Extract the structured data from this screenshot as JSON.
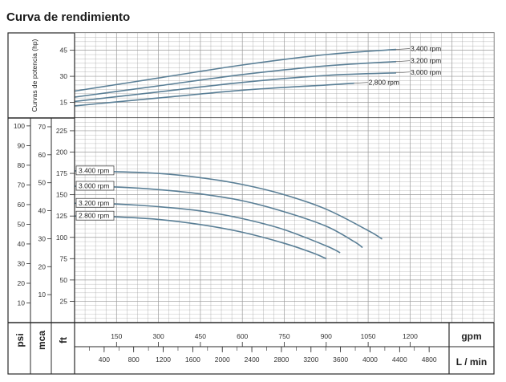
{
  "page_title": "Curva de rendimiento",
  "chart_data": {
    "type": "line",
    "title": "Curva de rendimiento",
    "colors": {
      "curve": "#5a7f96",
      "grid": "#9a9a9a",
      "frame": "#2a2a2a"
    },
    "power_chart": {
      "ylabel": "Curvas de potencia (hp)",
      "yticks": [
        15,
        30,
        45
      ],
      "ylim": [
        6,
        55
      ],
      "series": [
        {
          "label": "3,400 rpm",
          "x": [
            0,
            300,
            600,
            900,
            1150
          ],
          "y": [
            21.5,
            29,
            36.5,
            42.5,
            45.5
          ]
        },
        {
          "label": "3,200 rpm",
          "x": [
            0,
            300,
            600,
            900,
            1150
          ],
          "y": [
            18,
            24.5,
            31,
            36,
            38.5
          ]
        },
        {
          "label": "3,000 rpm",
          "x": [
            0,
            300,
            600,
            900,
            1150
          ],
          "y": [
            15.5,
            21,
            26.5,
            30.5,
            32
          ]
        },
        {
          "label": "2,800 rpm",
          "x": [
            0,
            300,
            600,
            900,
            1000
          ],
          "y": [
            13,
            17.5,
            22,
            25,
            26
          ]
        }
      ]
    },
    "head_chart": {
      "psi_ticks": [
        10,
        20,
        30,
        40,
        50,
        60,
        70,
        80,
        90,
        100
      ],
      "mca_ticks": [
        10,
        20,
        30,
        40,
        50,
        60,
        70
      ],
      "ft_ticks": [
        25,
        50,
        75,
        100,
        125,
        150,
        175,
        200,
        225
      ],
      "ft_lim": [
        0,
        240
      ],
      "series": [
        {
          "label": "3.400 rpm",
          "x": [
            0,
            150,
            300,
            450,
            600,
            750,
            900,
            1050,
            1100
          ],
          "y": [
            178,
            177,
            175,
            170,
            162,
            150,
            133,
            108,
            98
          ]
        },
        {
          "label": "3.000 rpm",
          "x": [
            0,
            150,
            300,
            450,
            600,
            750,
            900,
            1000,
            1030
          ],
          "y": [
            160,
            159,
            156,
            151,
            143,
            130,
            113,
            95,
            88
          ]
        },
        {
          "label": "3.200 rpm",
          "x": [
            0,
            150,
            300,
            450,
            600,
            750,
            900,
            950
          ],
          "y": [
            140,
            139,
            136,
            131,
            122,
            109,
            90,
            82
          ]
        },
        {
          "label": "2.800 rpm",
          "x": [
            0,
            150,
            300,
            450,
            600,
            750,
            850,
            900
          ],
          "y": [
            125,
            124,
            121,
            115,
            106,
            93,
            82,
            75
          ]
        }
      ]
    },
    "x_axis": {
      "gpm_label": "gpm",
      "gpm_ticks": [
        150,
        300,
        450,
        600,
        750,
        900,
        1050,
        1200
      ],
      "xlim_gpm": [
        0,
        1500
      ],
      "lmin_label": "L / min",
      "lmin_ticks": [
        400,
        800,
        1200,
        1600,
        2000,
        2400,
        2800,
        3200,
        3600,
        4000,
        4400,
        4800
      ]
    },
    "unit_labels": {
      "psi": "psi",
      "mca": "mca",
      "ft": "ft"
    }
  }
}
